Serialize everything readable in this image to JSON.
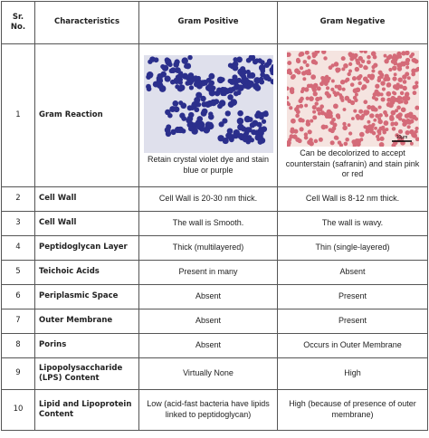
{
  "table": {
    "header": [
      "Sr. No.",
      "Characteristics",
      "Gram Positive",
      "Gram Negative"
    ],
    "rows": [
      [
        "1",
        "Gram Reaction",
        "Retain crystal violet dye and stain blue or purple",
        "Can be decolorized to accept counterstain (safranin) and stain pink or red"
      ],
      [
        "2",
        "Cell Wall",
        "Cell Wall is 20-30 nm thick.",
        "Cell Wall is 8-12 nm thick."
      ],
      [
        "3",
        "Cell Wall",
        "The wall is Smooth.",
        "The wall is wavy."
      ],
      [
        "4",
        "Peptidoglycan Layer",
        "Thick (multilayered)",
        "Thin (single-layered)"
      ],
      [
        "5",
        "Teichoic Acids",
        "Present in many",
        "Absent"
      ],
      [
        "6",
        "Periplasmic Space",
        "Absent",
        "Present"
      ],
      [
        "7",
        "Outer Membrane",
        "Absent",
        "Present"
      ],
      [
        "8",
        "Porins",
        "Absent",
        "Occurs in Outer Membrane"
      ],
      [
        "9",
        "Lipopolysaccharide (LPS) Content",
        "Virtually None",
        "High"
      ],
      [
        "10",
        "Lipid and Lipoprotein Content",
        "Low (acid-fast bacteria have lipids linked to peptidoglycan)",
        "High (because of presence of outer membrane)"
      ]
    ],
    "image_scale_label": "10µm"
  }
}
